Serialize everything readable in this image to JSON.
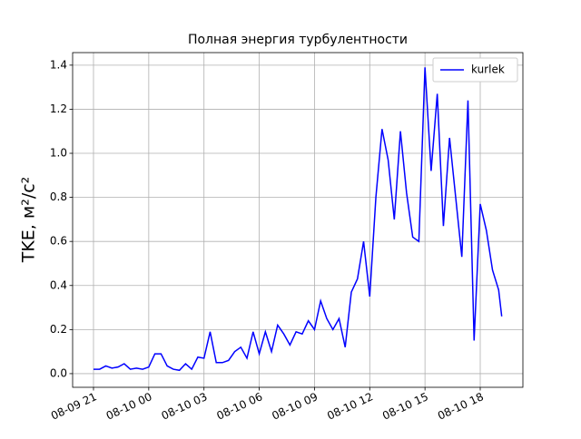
{
  "chart_data": {
    "type": "line",
    "title": "Полная энергия турбулентности",
    "y_label": "TKE, м²/с²",
    "x": [
      "08-09 21:00",
      "08-09 21:20",
      "08-09 21:40",
      "08-09 22:00",
      "08-09 22:20",
      "08-09 22:40",
      "08-09 23:00",
      "08-09 23:20",
      "08-09 23:40",
      "08-10 00:00",
      "08-10 00:20",
      "08-10 00:40",
      "08-10 01:00",
      "08-10 01:20",
      "08-10 01:40",
      "08-10 02:00",
      "08-10 02:20",
      "08-10 02:40",
      "08-10 03:00",
      "08-10 03:20",
      "08-10 03:40",
      "08-10 04:00",
      "08-10 04:20",
      "08-10 04:40",
      "08-10 05:00",
      "08-10 05:20",
      "08-10 05:40",
      "08-10 06:00",
      "08-10 06:20",
      "08-10 06:40",
      "08-10 07:00",
      "08-10 07:20",
      "08-10 07:40",
      "08-10 08:00",
      "08-10 08:20",
      "08-10 08:40",
      "08-10 09:00",
      "08-10 09:20",
      "08-10 09:40",
      "08-10 10:00",
      "08-10 10:20",
      "08-10 10:40",
      "08-10 11:00",
      "08-10 11:20",
      "08-10 11:40",
      "08-10 12:00",
      "08-10 12:20",
      "08-10 12:40",
      "08-10 13:00",
      "08-10 13:20",
      "08-10 13:40",
      "08-10 14:00",
      "08-10 14:20",
      "08-10 14:40",
      "08-10 15:00",
      "08-10 15:20",
      "08-10 15:40",
      "08-10 16:00",
      "08-10 16:20",
      "08-10 16:40",
      "08-10 17:00",
      "08-10 17:20",
      "08-10 17:40",
      "08-10 18:00",
      "08-10 18:20",
      "08-10 18:40",
      "08-10 19:00",
      "08-10 19:10"
    ],
    "series": [
      {
        "name": "kurlek",
        "color": "#0000ff",
        "values": [
          0.02,
          0.02,
          0.035,
          0.025,
          0.03,
          0.045,
          0.02,
          0.025,
          0.02,
          0.03,
          0.09,
          0.09,
          0.035,
          0.02,
          0.015,
          0.045,
          0.02,
          0.075,
          0.07,
          0.19,
          0.05,
          0.05,
          0.06,
          0.1,
          0.12,
          0.07,
          0.19,
          0.09,
          0.19,
          0.1,
          0.22,
          0.18,
          0.13,
          0.19,
          0.18,
          0.24,
          0.2,
          0.33,
          0.25,
          0.2,
          0.25,
          0.12,
          0.37,
          0.43,
          0.6,
          0.35,
          0.8,
          1.11,
          0.97,
          0.7,
          1.1,
          0.82,
          0.62,
          0.6,
          1.39,
          0.92,
          1.27,
          0.67,
          1.07,
          0.8,
          0.53,
          1.24,
          0.15,
          0.77,
          0.65,
          0.47,
          0.38,
          0.26
        ]
      }
    ],
    "xlim": [
      "08-09 19:52",
      "08-10 20:19"
    ],
    "xticks": [
      {
        "value": "08-09 21:00",
        "label": "08-09 21"
      },
      {
        "value": "08-10 00:00",
        "label": "08-10 00"
      },
      {
        "value": "08-10 03:00",
        "label": "08-10 03"
      },
      {
        "value": "08-10 06:00",
        "label": "08-10 06"
      },
      {
        "value": "08-10 09:00",
        "label": "08-10 09"
      },
      {
        "value": "08-10 12:00",
        "label": "08-10 12"
      },
      {
        "value": "08-10 15:00",
        "label": "08-10 15"
      },
      {
        "value": "08-10 18:00",
        "label": "08-10 18"
      }
    ],
    "ylim": [
      -0.062,
      1.457
    ],
    "yticks": [
      {
        "value": 0,
        "label": "0.0"
      },
      {
        "value": 0.2,
        "label": "0.2"
      },
      {
        "value": 0.4,
        "label": "0.4"
      },
      {
        "value": 0.6,
        "label": "0.6"
      },
      {
        "value": 0.8,
        "label": "0.8"
      },
      {
        "value": 1,
        "label": "1.0"
      },
      {
        "value": 1.2,
        "label": "1.2"
      },
      {
        "value": 1.4,
        "label": "1.4"
      }
    ],
    "grid": true,
    "legend": "upper right"
  }
}
